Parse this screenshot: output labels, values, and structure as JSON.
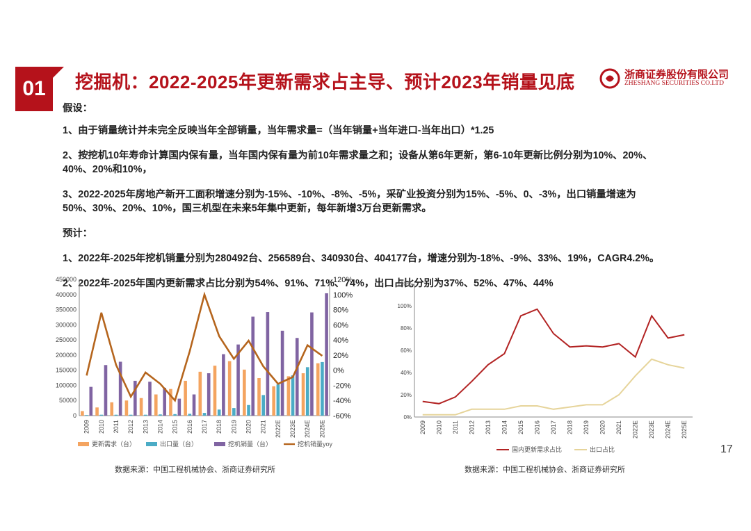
{
  "header": {
    "badge": "01",
    "title": "挖掘机：2022-2025年更新需求占主导、预计2023年销量见底",
    "logo_cn": "浙商证券股份有限公司",
    "logo_en": "ZHESHANG SECURITIES CO.LTD"
  },
  "content": {
    "assume_heading": "假设：",
    "assume": [
      "1、由于销量统计并未完全反映当年全部销量，当年需求量=（当年销量+当年进口-当年出口）*1.25",
      "2、按挖机10年寿命计算国内保有量，当年国内保有量为前10年需求量之和；设备从第6年更新，第6-10年更新比例分别为10%、20%、",
      "40%、20%和10%，",
      "3、2022-2025年房地产新开工面积增速分别为-15%、-10%、-8%、-5%，采矿业投资分别为15%、-5%、0、-3%，出口销量增速为",
      "50%、30%、20%、10%，国三机型在未来5年集中更新，每年新增3万台更新需求。"
    ],
    "forecast_heading": "预计：",
    "forecast": [
      "1、2022年-2025年挖机销量分别为280492台、256589台、340930台、404177台，增速分别为-18%、-9%、33%、19%，CAGR4.2%。",
      "2、2022年-2025年国内更新需求占比分别为54%、91%、71%、74%，出口占比分别为37%、52%、47%、44%"
    ]
  },
  "page_number": "17",
  "sources": {
    "left": "数据来源：中国工程机械协会、浙商证券研究所",
    "right": "数据来源：中国工程机械协会、浙商证券研究所"
  },
  "colors": {
    "brand_red": "#b5121b",
    "update_demand": "#f4a460",
    "export": "#4bacc6",
    "sales": "#8064a2",
    "sales_yoy": "#b5651d",
    "domestic_share": "#b22222",
    "export_share": "#e6d49a"
  },
  "chart_data": [
    {
      "type": "bar",
      "categories": [
        "2009",
        "2010",
        "2011",
        "2012",
        "2013",
        "2014",
        "2015",
        "2016",
        "2017",
        "2018",
        "2019",
        "2020",
        "2021",
        "2022E",
        "2023E",
        "2024E",
        "2025E"
      ],
      "ylim": [
        0,
        450000
      ],
      "yticks": [
        "0",
        "50000",
        "100000",
        "150000",
        "200000",
        "250000",
        "300000",
        "350000",
        "400000",
        "450000"
      ],
      "y2lim": [
        -60,
        120
      ],
      "y2ticks": [
        "-60%",
        "-40%",
        "-20%",
        "0%",
        "20%",
        "40%",
        "60%",
        "80%",
        "100%",
        "120%"
      ],
      "series": [
        {
          "name": "更新需求（台）",
          "values": [
            15000,
            27000,
            44000,
            50000,
            58000,
            70000,
            88000,
            115000,
            145000,
            165000,
            180000,
            152000,
            124000,
            97000,
            130000,
            140000,
            173000
          ]
        },
        {
          "name": "出口量（台）",
          "values": [
            2000,
            3000,
            3000,
            3000,
            3000,
            4000,
            5000,
            6000,
            9000,
            20000,
            25000,
            35000,
            68000,
            103000,
            133000,
            160000,
            177000
          ]
        },
        {
          "name": "挖机销量（台）",
          "values": [
            95000,
            167000,
            178000,
            115000,
            112000,
            92000,
            56000,
            70000,
            140000,
            203000,
            235000,
            327000,
            342000,
            280492,
            256589,
            340930,
            404177
          ]
        },
        {
          "name": "挖机销量yoy",
          "axis": "right",
          "values": [
            -7,
            76,
            7,
            -35,
            -3,
            -18,
            -40,
            25,
            100,
            45,
            15,
            39,
            5,
            -18,
            -9,
            33,
            19
          ]
        }
      ]
    },
    {
      "type": "line",
      "categories": [
        "2009",
        "2010",
        "2011",
        "2012",
        "2013",
        "2014",
        "2015",
        "2016",
        "2017",
        "2018",
        "2019",
        "2020",
        "2021",
        "2022E",
        "2023E",
        "2024E",
        "2025E"
      ],
      "ylim": [
        0,
        120
      ],
      "yticks": [
        "0%",
        "20%",
        "40%",
        "60%",
        "80%",
        "100%",
        "120%"
      ],
      "series": [
        {
          "name": "国内更新需求占比",
          "values": [
            14,
            12,
            18,
            32,
            47,
            57,
            91,
            97,
            75,
            63,
            64,
            63,
            66,
            54,
            91,
            71,
            74
          ]
        },
        {
          "name": "出口占比",
          "values": [
            2,
            2,
            2,
            7,
            7,
            7,
            10,
            10,
            7,
            9,
            11,
            11,
            20,
            37,
            52,
            47,
            44
          ]
        }
      ]
    }
  ]
}
